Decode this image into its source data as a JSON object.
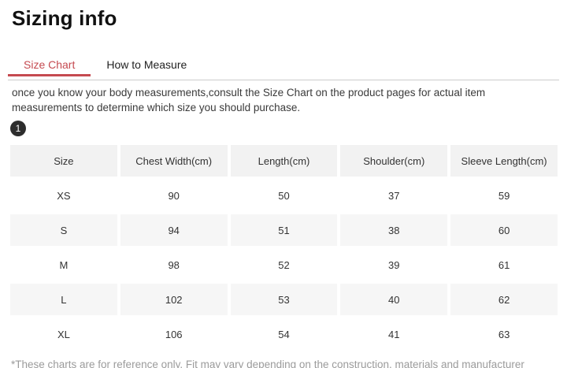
{
  "page": {
    "title": "Sizing info"
  },
  "tabs": [
    {
      "label": "Size Chart",
      "active": true
    },
    {
      "label": "How to Measure",
      "active": false
    }
  ],
  "intro": {
    "text": "once you know your body measurements,consult the Size Chart on the product pages for actual item measurements to determine which size you should purchase."
  },
  "step_badge": "1",
  "size_table": {
    "columns": [
      "Size",
      "Chest Width(cm)",
      "Length(cm)",
      "Shoulder(cm)",
      "Sleeve Length(cm)"
    ],
    "rows": [
      [
        "XS",
        "90",
        "50",
        "37",
        "59"
      ],
      [
        "S",
        "94",
        "51",
        "38",
        "60"
      ],
      [
        "M",
        "98",
        "52",
        "39",
        "61"
      ],
      [
        "L",
        "102",
        "53",
        "40",
        "62"
      ],
      [
        "XL",
        "106",
        "54",
        "41",
        "63"
      ]
    ]
  },
  "footnote": "*These charts are for reference only. Fit may vary depending on the construction, materials and manufacturer",
  "colors": {
    "accent_red": "#c54a50",
    "header_row_bg": "#f2f2f2",
    "alt_row_bg": "#f6f6f6",
    "tab_divider": "#cccccc"
  }
}
